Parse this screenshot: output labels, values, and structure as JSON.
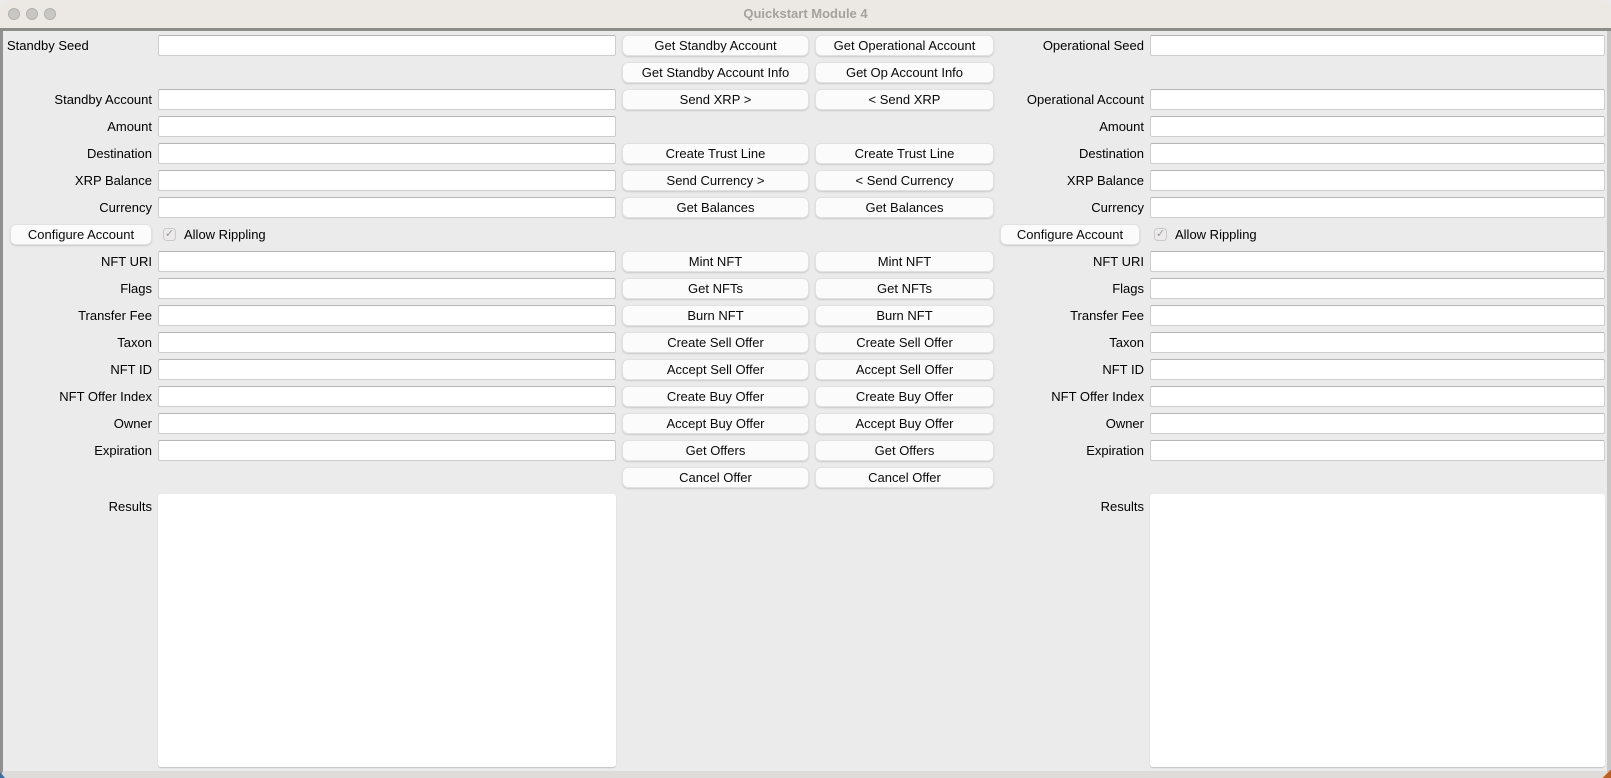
{
  "titlebar": {
    "title": "Quickstart Module 4",
    "traffic_lights": [
      "close",
      "minimize",
      "zoom"
    ]
  },
  "icons": {
    "check_glyph": "✓"
  },
  "colors": {
    "titlebar_bg": "#ece9e4",
    "titlebar_text": "#a5a19c",
    "window_border_dark": "#8e8c89",
    "content_bg": "#ebebeb",
    "field_bg": "#ffffff",
    "button_bg": "#fbfbfb",
    "button_border": "#e1e1e1"
  },
  "standby": {
    "labels": {
      "seed": "Standby Seed",
      "account": "Standby Account",
      "amount": "Amount",
      "destination": "Destination",
      "xrp_balance": "XRP Balance",
      "currency": "Currency",
      "nft_uri": "NFT URI",
      "flags": "Flags",
      "transfer_fee": "Transfer Fee",
      "taxon": "Taxon",
      "nft_id": "NFT ID",
      "nft_offer_index": "NFT Offer Index",
      "owner": "Owner",
      "expiration": "Expiration",
      "results": "Results"
    },
    "values": {
      "seed": "",
      "account": "",
      "amount": "",
      "destination": "",
      "xrp_balance": "",
      "currency": "",
      "nft_uri": "",
      "flags": "",
      "transfer_fee": "",
      "taxon": "",
      "nft_id": "",
      "nft_offer_index": "",
      "owner": "",
      "expiration": "",
      "results": ""
    },
    "configure_account_button": "Configure Account",
    "allow_rippling": {
      "label": "Allow Rippling",
      "checked": true
    },
    "buttons": {
      "get_account": "Get Standby Account",
      "get_account_info": "Get Standby Account Info",
      "send_xrp": "Send XRP >",
      "create_trust_line": "Create Trust Line",
      "send_currency": "Send Currency >",
      "get_balances": "Get Balances",
      "mint_nft": "Mint NFT",
      "get_nfts": "Get NFTs",
      "burn_nft": "Burn NFT",
      "create_sell_offer": "Create Sell Offer",
      "accept_sell_offer": "Accept Sell Offer",
      "create_buy_offer": "Create Buy Offer",
      "accept_buy_offer": "Accept Buy Offer",
      "get_offers": "Get Offers",
      "cancel_offer": "Cancel Offer"
    }
  },
  "operational": {
    "labels": {
      "seed": "Operational Seed",
      "account": "Operational Account",
      "amount": "Amount",
      "destination": "Destination",
      "xrp_balance": "XRP Balance",
      "currency": "Currency",
      "nft_uri": "NFT URI",
      "flags": "Flags",
      "transfer_fee": "Transfer Fee",
      "taxon": "Taxon",
      "nft_id": "NFT ID",
      "nft_offer_index": "NFT Offer Index",
      "owner": "Owner",
      "expiration": "Expiration",
      "results": "Results"
    },
    "values": {
      "seed": "",
      "account": "",
      "amount": "",
      "destination": "",
      "xrp_balance": "",
      "currency": "",
      "nft_uri": "",
      "flags": "",
      "transfer_fee": "",
      "taxon": "",
      "nft_id": "",
      "nft_offer_index": "",
      "owner": "",
      "expiration": "",
      "results": ""
    },
    "configure_account_button": "Configure Account",
    "allow_rippling": {
      "label": "Allow Rippling",
      "checked": true
    },
    "buttons": {
      "get_account": "Get Operational Account",
      "get_account_info": "Get Op Account Info",
      "send_xrp": "< Send XRP",
      "create_trust_line": "Create Trust Line",
      "send_currency": "< Send Currency",
      "get_balances": "Get Balances",
      "mint_nft": "Mint NFT",
      "get_nfts": "Get NFTs",
      "burn_nft": "Burn NFT",
      "create_sell_offer": "Create Sell Offer",
      "accept_sell_offer": "Accept Sell Offer",
      "create_buy_offer": "Create Buy Offer",
      "accept_buy_offer": "Accept Buy Offer",
      "get_offers": "Get Offers",
      "cancel_offer": "Cancel Offer"
    }
  }
}
